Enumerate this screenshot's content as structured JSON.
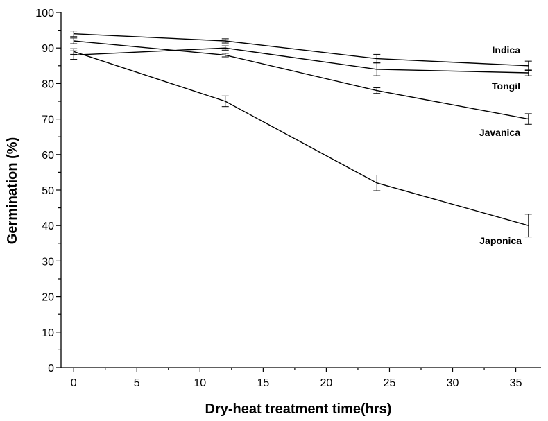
{
  "chart_data": {
    "type": "line",
    "title": "",
    "xlabel": "Dry-heat treatment time(hrs)",
    "ylabel": "Germination (%)",
    "xlim": [
      -1,
      37
    ],
    "ylim": [
      0,
      100
    ],
    "x_ticks": [
      0,
      5,
      10,
      15,
      20,
      25,
      30,
      35
    ],
    "y_ticks": [
      0,
      10,
      20,
      30,
      40,
      50,
      60,
      70,
      80,
      90,
      100
    ],
    "grid": false,
    "legend": "inline labels at line ends",
    "x": [
      0,
      12,
      24,
      36
    ],
    "series": [
      {
        "name": "Indica",
        "values": [
          94,
          92,
          87,
          85
        ],
        "errors": [
          0.8,
          0.6,
          1.2,
          1.3
        ]
      },
      {
        "name": "Tongil",
        "values": [
          88,
          90,
          84,
          83
        ],
        "errors": [
          1.2,
          0.6,
          1.8,
          0.8
        ]
      },
      {
        "name": "Javanica",
        "values": [
          92,
          88,
          78,
          70
        ],
        "errors": [
          0.8,
          0.5,
          0.8,
          1.5
        ]
      },
      {
        "name": "Japonica",
        "values": [
          89,
          75,
          52,
          40
        ],
        "errors": [
          0.8,
          1.5,
          2.2,
          3.2
        ]
      }
    ],
    "colors": {
      "line": "#000000",
      "background": "#ffffff"
    }
  }
}
